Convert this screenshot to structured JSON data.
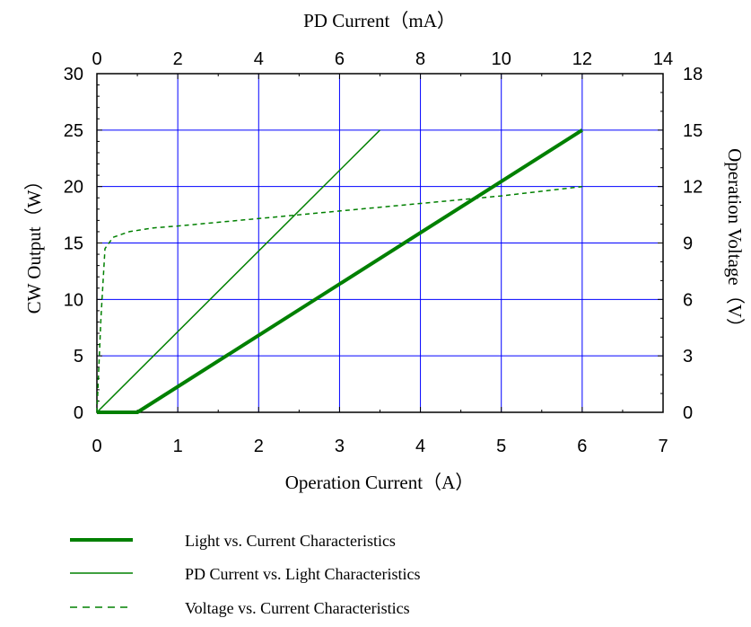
{
  "chart_data": {
    "type": "line",
    "top_xlabel": "PD Current（mA）",
    "xlabel": "Operation Current（A）",
    "ylabel": "CW Output（W）",
    "y2label": "Operation Voltage（V）",
    "xlim": [
      0,
      7
    ],
    "x_top_lim": [
      0,
      14
    ],
    "ylim": [
      0,
      30
    ],
    "y2lim": [
      0,
      18
    ],
    "x_ticks": [
      "0",
      "1",
      "2",
      "3",
      "4",
      "5",
      "6",
      "7"
    ],
    "x_top_ticks": [
      "0",
      "2",
      "4",
      "6",
      "8",
      "10",
      "12",
      "14"
    ],
    "y_ticks": [
      "0",
      "5",
      "10",
      "15",
      "20",
      "25",
      "30"
    ],
    "y2_ticks": [
      "0",
      "3",
      "6",
      "9",
      "12",
      "15",
      "18"
    ],
    "grid": true,
    "grid_color": "#0000ff",
    "series_color": "#008000",
    "series": [
      {
        "name": "Light vs. Current Characteristics",
        "axes": "bottom-left",
        "style": "thick",
        "x": [
          0,
          0.5,
          6
        ],
        "y": [
          0,
          0,
          25
        ]
      },
      {
        "name": "PD Current vs. Light Characteristics",
        "axes": "top-left",
        "style": "thin",
        "x": [
          0,
          7
        ],
        "y": [
          0,
          25
        ]
      },
      {
        "name": "Voltage vs. Current Characteristics",
        "axes": "bottom-right",
        "style": "dashed",
        "x": [
          0,
          0.05,
          0.1,
          0.2,
          0.4,
          0.7,
          1.0,
          2.0,
          3.0,
          4.0,
          5.0,
          6.0
        ],
        "y": [
          0,
          5,
          8.7,
          9.3,
          9.6,
          9.8,
          9.9,
          10.3,
          10.7,
          11.1,
          11.5,
          12.0
        ]
      }
    ],
    "legend_placement": "bottom"
  }
}
